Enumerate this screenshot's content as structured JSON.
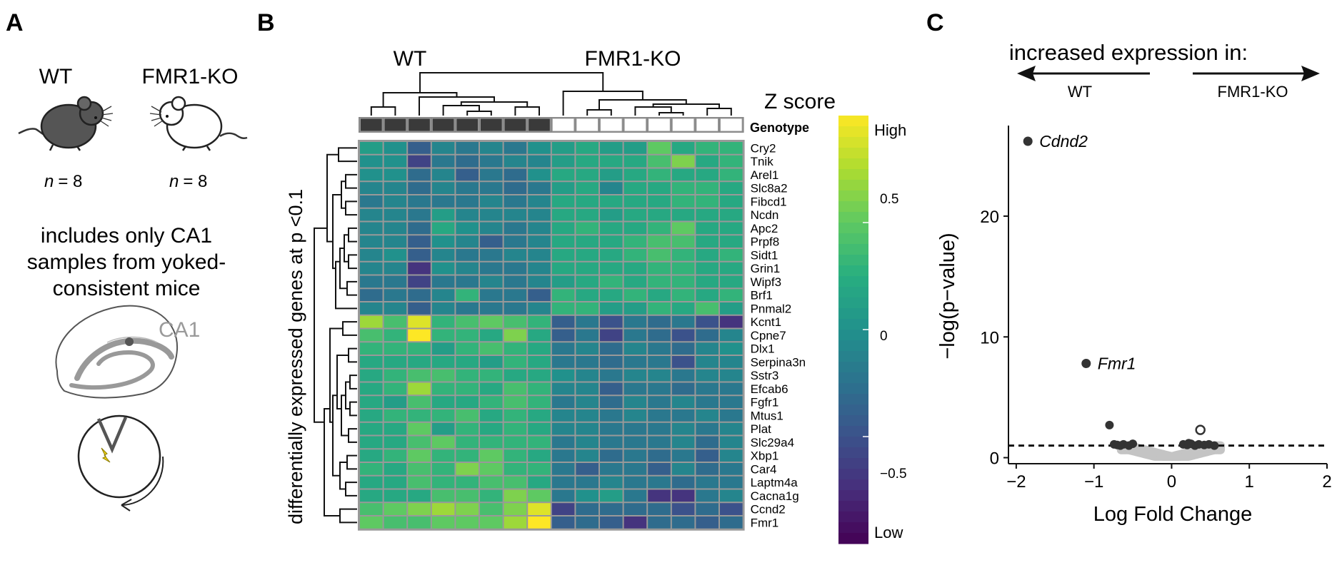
{
  "panelA": {
    "letter": "A",
    "wt_label": "WT",
    "ko_label": "FMR1-KO",
    "wt_n": "= 8",
    "ko_n": "= 8",
    "n_symbol": "n",
    "desc_lines": [
      "includes only CA1",
      "samples from yoked-",
      "consistent mice"
    ],
    "ca1_label": "CA1",
    "icons": [
      "wt-mouse-icon",
      "ko-mouse-icon",
      "hippocampus-icon",
      "arena-icon",
      "shock-icon"
    ],
    "colors": {
      "wt_mouse": "#555555",
      "ko_mouse": "#ffffff",
      "ca1_label": "#9a9a9a",
      "shock": "#f2d411"
    }
  },
  "panelB": {
    "letter": "B",
    "wt_label": "WT",
    "ko_label": "FMR1-KO",
    "genotype_label": "Genotype",
    "y_axis_label": "differentially expressed genes at p <0.1",
    "colorbar_title": "Z score",
    "colorbar_ticks": [
      "High",
      "0.5",
      "0",
      "−0.5",
      "Low"
    ],
    "genotype_colors": {
      "WT": "#3a3a3a",
      "FMR1-KO": "#ffffff"
    },
    "genes": [
      "Cry2",
      "Tnik",
      "Arel1",
      "Slc8a2",
      "Fibcd1",
      "Ncdn",
      "Apc2",
      "Prpf8",
      "Sidt1",
      "Grin1",
      "Wipf3",
      "Brf1",
      "Pnmal2",
      "Kcnt1",
      "Cpne7",
      "Dlx1",
      "Serpina3n",
      "Sstr3",
      "Efcab6",
      "Fgfr1",
      "Mtus1",
      "Plat",
      "Slc29a4",
      "Xbp1",
      "Car4",
      "Laptm4a",
      "Cacna1g",
      "Ccnd2",
      "Fmr1"
    ],
    "genotypes": [
      "WT",
      "WT",
      "WT",
      "WT",
      "WT",
      "WT",
      "WT",
      "WT",
      "FMR1-KO",
      "FMR1-KO",
      "FMR1-KO",
      "FMR1-KO",
      "FMR1-KO",
      "FMR1-KO",
      "FMR1-KO",
      "FMR1-KO"
    ],
    "z_scores": [
      [
        0.1,
        0.0,
        -0.4,
        -0.1,
        -0.2,
        -0.1,
        -0.2,
        0.0,
        0.1,
        0.2,
        0.1,
        0.1,
        0.5,
        0.2,
        0.3,
        0.3
      ],
      [
        0.0,
        0.0,
        -0.6,
        -0.2,
        -0.3,
        -0.2,
        -0.1,
        -0.1,
        0.1,
        0.2,
        0.2,
        0.2,
        0.4,
        0.6,
        0.2,
        0.3
      ],
      [
        0.0,
        0.0,
        -0.3,
        -0.1,
        -0.4,
        -0.2,
        -0.3,
        0.0,
        0.2,
        0.2,
        0.1,
        0.2,
        0.3,
        0.2,
        0.2,
        0.3
      ],
      [
        -0.1,
        -0.1,
        -0.3,
        -0.1,
        -0.2,
        -0.2,
        -0.3,
        -0.2,
        0.1,
        0.2,
        -0.1,
        0.2,
        0.2,
        0.3,
        0.3,
        0.2
      ],
      [
        -0.2,
        -0.1,
        -0.2,
        -0.2,
        -0.2,
        -0.1,
        -0.2,
        -0.1,
        0.2,
        0.2,
        0.2,
        0.2,
        0.2,
        0.3,
        0.3,
        0.2
      ],
      [
        -0.1,
        -0.1,
        -0.2,
        0.1,
        -0.1,
        -0.1,
        -0.1,
        -0.1,
        0.2,
        0.2,
        0.1,
        0.2,
        0.2,
        0.2,
        0.2,
        0.2
      ],
      [
        -0.1,
        -0.1,
        -0.3,
        0.2,
        0.0,
        -0.1,
        -0.2,
        -0.1,
        0.2,
        0.3,
        0.2,
        0.2,
        0.3,
        0.5,
        0.2,
        0.2
      ],
      [
        -0.1,
        -0.1,
        -0.4,
        0.0,
        -0.1,
        -0.4,
        -0.2,
        -0.1,
        0.2,
        0.2,
        0.2,
        0.3,
        0.4,
        0.4,
        0.2,
        0.2
      ],
      [
        -0.1,
        0.0,
        -0.4,
        -0.1,
        -0.2,
        -0.2,
        -0.1,
        -0.1,
        0.2,
        0.2,
        0.2,
        0.3,
        0.4,
        0.3,
        0.2,
        0.3
      ],
      [
        -0.1,
        -0.1,
        -0.7,
        0.0,
        -0.1,
        -0.2,
        -0.2,
        -0.1,
        0.2,
        0.2,
        0.2,
        0.2,
        0.3,
        0.3,
        0.2,
        0.2
      ],
      [
        -0.2,
        -0.2,
        -0.6,
        -0.2,
        -0.2,
        -0.1,
        -0.2,
        -0.1,
        0.1,
        0.2,
        0.3,
        0.2,
        0.3,
        0.3,
        0.2,
        0.2
      ],
      [
        -0.3,
        -0.2,
        -0.3,
        -0.1,
        0.3,
        -0.2,
        -0.2,
        -0.4,
        0.3,
        0.2,
        0.2,
        0.3,
        0.2,
        0.3,
        0.2,
        0.3
      ],
      [
        -0.1,
        -0.1,
        -0.4,
        -0.1,
        -0.2,
        -0.2,
        -0.2,
        -0.1,
        0.3,
        0.3,
        0.1,
        0.1,
        0.3,
        0.2,
        0.4,
        0.1
      ],
      [
        0.7,
        0.4,
        0.9,
        0.3,
        0.4,
        0.5,
        0.4,
        0.3,
        -0.4,
        -0.2,
        -0.5,
        -0.2,
        -0.3,
        -0.2,
        -0.5,
        -0.7
      ],
      [
        0.4,
        0.3,
        1.0,
        0.3,
        0.3,
        0.2,
        0.6,
        0.2,
        -0.4,
        -0.2,
        -0.6,
        -0.2,
        -0.3,
        -0.5,
        -0.3,
        -0.1
      ],
      [
        0.3,
        0.3,
        0.3,
        0.1,
        0.3,
        0.4,
        0.3,
        0.2,
        -0.2,
        -0.1,
        -0.3,
        -0.1,
        -0.2,
        -0.3,
        -0.1,
        0.0
      ],
      [
        0.2,
        0.2,
        0.2,
        0.2,
        0.2,
        0.1,
        0.3,
        0.2,
        -0.2,
        -0.2,
        -0.3,
        -0.2,
        -0.2,
        -0.5,
        -0.1,
        -0.1
      ],
      [
        0.2,
        0.3,
        0.4,
        0.4,
        0.3,
        0.3,
        0.2,
        0.2,
        0.0,
        -0.1,
        -0.2,
        -0.1,
        -0.1,
        -0.2,
        -0.1,
        -0.1
      ],
      [
        0.2,
        0.3,
        0.7,
        0.3,
        0.3,
        0.2,
        0.4,
        0.3,
        -0.1,
        -0.1,
        -0.4,
        -0.2,
        -0.2,
        -0.3,
        -0.2,
        -0.2
      ],
      [
        0.2,
        0.1,
        0.4,
        0.2,
        0.2,
        0.3,
        0.4,
        0.3,
        -0.2,
        -0.1,
        -0.3,
        -0.1,
        -0.2,
        -0.1,
        -0.2,
        -0.2
      ],
      [
        0.2,
        0.3,
        0.3,
        0.3,
        0.4,
        0.2,
        0.3,
        0.2,
        -0.1,
        -0.1,
        -0.2,
        -0.1,
        -0.2,
        -0.2,
        -0.1,
        -0.2
      ],
      [
        0.2,
        0.2,
        0.5,
        0.1,
        0.3,
        0.2,
        0.3,
        0.2,
        -0.1,
        -0.1,
        -0.2,
        -0.2,
        -0.2,
        -0.1,
        -0.2,
        -0.1
      ],
      [
        0.2,
        0.2,
        0.4,
        0.5,
        0.3,
        0.3,
        0.3,
        0.3,
        -0.2,
        -0.1,
        -0.2,
        -0.2,
        -0.2,
        -0.1,
        -0.3,
        -0.1
      ],
      [
        0.2,
        0.3,
        0.5,
        0.3,
        0.3,
        0.5,
        0.3,
        0.2,
        -0.2,
        -0.1,
        -0.3,
        -0.2,
        -0.3,
        -0.2,
        -0.4,
        -0.1
      ],
      [
        0.3,
        0.2,
        0.4,
        0.3,
        0.6,
        0.5,
        0.3,
        0.3,
        -0.2,
        -0.4,
        -0.2,
        -0.2,
        -0.4,
        -0.1,
        -0.3,
        -0.2
      ],
      [
        0.2,
        0.2,
        0.4,
        0.3,
        0.3,
        0.4,
        0.4,
        0.2,
        -0.2,
        -0.2,
        -0.1,
        -0.2,
        -0.2,
        -0.3,
        -0.2,
        -0.2
      ],
      [
        0.2,
        0.2,
        0.2,
        0.4,
        0.4,
        0.3,
        0.6,
        0.5,
        -0.2,
        0.0,
        0.1,
        -0.2,
        -0.7,
        -0.7,
        -0.2,
        -0.1
      ],
      [
        0.4,
        0.5,
        0.6,
        0.7,
        0.6,
        0.4,
        0.6,
        0.9,
        -0.6,
        -0.3,
        -0.3,
        -0.3,
        -0.3,
        -0.5,
        -0.3,
        -0.5
      ],
      [
        0.5,
        0.4,
        0.4,
        0.5,
        0.5,
        0.5,
        0.7,
        1.0,
        -0.4,
        -0.3,
        -0.4,
        -0.7,
        -0.3,
        -0.3,
        -0.4,
        -0.3
      ]
    ],
    "colormap": [
      "#440154",
      "#472d7b",
      "#3b528b",
      "#2c728e",
      "#21918c",
      "#28ae80",
      "#5ec962",
      "#addc30",
      "#fde725"
    ],
    "legend": "Z score"
  },
  "panelC": {
    "letter": "C",
    "header": "increased expression in:",
    "left_dir": "WT",
    "right_dir": "FMR1-KO",
    "chart_data": {
      "type": "scatter",
      "title": "",
      "xlabel": "Log Fold Change",
      "ylabel": "−log(p−value)",
      "xlim": [
        -2.1,
        2.0
      ],
      "ylim": [
        -0.5,
        27.5
      ],
      "x_ticks": [
        -2,
        -1,
        0,
        1,
        2
      ],
      "x_tick_labels": [
        "−2",
        "−1",
        "0",
        "1",
        "2"
      ],
      "y_ticks": [
        0,
        10,
        20
      ],
      "y_tick_labels": [
        "0",
        "10",
        "20"
      ],
      "threshold_y": 1.0,
      "labeled_points": [
        {
          "gene": "Cdnd2",
          "x": -1.85,
          "y": 26.2
        },
        {
          "gene": "Fmr1",
          "x": -1.1,
          "y": 7.8
        }
      ],
      "sig_points_wt": [
        {
          "x": -0.8,
          "y": 2.7
        },
        {
          "x": -0.74,
          "y": 1.1
        },
        {
          "x": -0.7,
          "y": 1.05
        },
        {
          "x": -0.62,
          "y": 1.1
        },
        {
          "x": -0.55,
          "y": 1.0
        },
        {
          "x": -0.5,
          "y": 1.15
        },
        {
          "x": -0.66,
          "y": 1.0
        }
      ],
      "sig_points_ko": [
        {
          "x": 0.15,
          "y": 1.1
        },
        {
          "x": 0.2,
          "y": 1.05
        },
        {
          "x": 0.25,
          "y": 1.15
        },
        {
          "x": 0.3,
          "y": 1.0
        },
        {
          "x": 0.35,
          "y": 1.1
        },
        {
          "x": 0.42,
          "y": 1.05
        },
        {
          "x": 0.48,
          "y": 1.1
        },
        {
          "x": 0.55,
          "y": 1.0
        },
        {
          "x": 0.22,
          "y": 1.2
        }
      ],
      "open_points": [
        {
          "x": 0.37,
          "y": 2.3
        }
      ],
      "colors": {
        "sig": "#333333",
        "nonsig": "#c4c4c4",
        "threshold": "#111111"
      }
    }
  }
}
